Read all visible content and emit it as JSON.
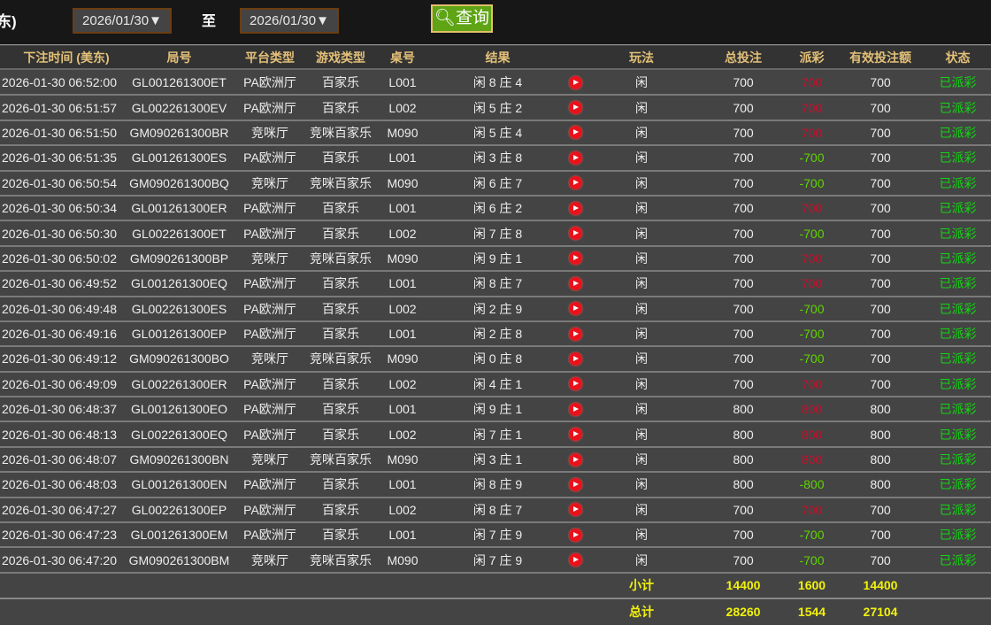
{
  "toolbar": {
    "cut_label": "东)",
    "start_date": "2026/01/30▼",
    "to_label": "至",
    "end_date": "2026/01/30▼",
    "query_label": "查询"
  },
  "headers": [
    "下注时间 (美东)",
    "局号",
    "平台类型",
    "游戏类型",
    "桌号",
    "结果",
    "",
    "玩法",
    "总投注",
    "派彩",
    "有效投注额",
    "状态"
  ],
  "colors": {
    "win": "#c4102c",
    "lose": "#5fd400",
    "status": "#14d414",
    "header": "#e3c078",
    "summary": "#f2f20a"
  },
  "rows": [
    [
      "2026-01-30 06:52:00",
      "GL001261300ET",
      "PA欧洲厅",
      "百家乐",
      "L001",
      "闲 8 庄 4",
      "闲",
      "700",
      "700",
      "700",
      "已派彩"
    ],
    [
      "2026-01-30 06:51:57",
      "GL002261300EV",
      "PA欧洲厅",
      "百家乐",
      "L002",
      "闲 5 庄 2",
      "闲",
      "700",
      "700",
      "700",
      "已派彩"
    ],
    [
      "2026-01-30 06:51:50",
      "GM090261300BR",
      "竞咪厅",
      "竞咪百家乐",
      "M090",
      "闲 5 庄 4",
      "闲",
      "700",
      "700",
      "700",
      "已派彩"
    ],
    [
      "2026-01-30 06:51:35",
      "GL001261300ES",
      "PA欧洲厅",
      "百家乐",
      "L001",
      "闲 3 庄 8",
      "闲",
      "700",
      "-700",
      "700",
      "已派彩"
    ],
    [
      "2026-01-30 06:50:54",
      "GM090261300BQ",
      "竞咪厅",
      "竞咪百家乐",
      "M090",
      "闲 6 庄 7",
      "闲",
      "700",
      "-700",
      "700",
      "已派彩"
    ],
    [
      "2026-01-30 06:50:34",
      "GL001261300ER",
      "PA欧洲厅",
      "百家乐",
      "L001",
      "闲 6 庄 2",
      "闲",
      "700",
      "700",
      "700",
      "已派彩"
    ],
    [
      "2026-01-30 06:50:30",
      "GL002261300ET",
      "PA欧洲厅",
      "百家乐",
      "L002",
      "闲 7 庄 8",
      "闲",
      "700",
      "-700",
      "700",
      "已派彩"
    ],
    [
      "2026-01-30 06:50:02",
      "GM090261300BP",
      "竞咪厅",
      "竞咪百家乐",
      "M090",
      "闲 9 庄 1",
      "闲",
      "700",
      "700",
      "700",
      "已派彩"
    ],
    [
      "2026-01-30 06:49:52",
      "GL001261300EQ",
      "PA欧洲厅",
      "百家乐",
      "L001",
      "闲 8 庄 7",
      "闲",
      "700",
      "700",
      "700",
      "已派彩"
    ],
    [
      "2026-01-30 06:49:48",
      "GL002261300ES",
      "PA欧洲厅",
      "百家乐",
      "L002",
      "闲 2 庄 9",
      "闲",
      "700",
      "-700",
      "700",
      "已派彩"
    ],
    [
      "2026-01-30 06:49:16",
      "GL001261300EP",
      "PA欧洲厅",
      "百家乐",
      "L001",
      "闲 2 庄 8",
      "闲",
      "700",
      "-700",
      "700",
      "已派彩"
    ],
    [
      "2026-01-30 06:49:12",
      "GM090261300BO",
      "竞咪厅",
      "竞咪百家乐",
      "M090",
      "闲 0 庄 8",
      "闲",
      "700",
      "-700",
      "700",
      "已派彩"
    ],
    [
      "2026-01-30 06:49:09",
      "GL002261300ER",
      "PA欧洲厅",
      "百家乐",
      "L002",
      "闲 4 庄 1",
      "闲",
      "700",
      "700",
      "700",
      "已派彩"
    ],
    [
      "2026-01-30 06:48:37",
      "GL001261300EO",
      "PA欧洲厅",
      "百家乐",
      "L001",
      "闲 9 庄 1",
      "闲",
      "800",
      "800",
      "800",
      "已派彩"
    ],
    [
      "2026-01-30 06:48:13",
      "GL002261300EQ",
      "PA欧洲厅",
      "百家乐",
      "L002",
      "闲 7 庄 1",
      "闲",
      "800",
      "800",
      "800",
      "已派彩"
    ],
    [
      "2026-01-30 06:48:07",
      "GM090261300BN",
      "竞咪厅",
      "竞咪百家乐",
      "M090",
      "闲 3 庄 1",
      "闲",
      "800",
      "800",
      "800",
      "已派彩"
    ],
    [
      "2026-01-30 06:48:03",
      "GL001261300EN",
      "PA欧洲厅",
      "百家乐",
      "L001",
      "闲 8 庄 9",
      "闲",
      "800",
      "-800",
      "800",
      "已派彩"
    ],
    [
      "2026-01-30 06:47:27",
      "GL002261300EP",
      "PA欧洲厅",
      "百家乐",
      "L002",
      "闲 8 庄 7",
      "闲",
      "700",
      "700",
      "700",
      "已派彩"
    ],
    [
      "2026-01-30 06:47:23",
      "GL001261300EM",
      "PA欧洲厅",
      "百家乐",
      "L001",
      "闲 7 庄 9",
      "闲",
      "700",
      "-700",
      "700",
      "已派彩"
    ],
    [
      "2026-01-30 06:47:20",
      "GM090261300BM",
      "竞咪厅",
      "竞咪百家乐",
      "M090",
      "闲 7 庄 9",
      "闲",
      "700",
      "-700",
      "700",
      "已派彩"
    ]
  ],
  "subtotal": {
    "label": "小计",
    "total_bet": "14400",
    "payout": "1600",
    "valid_bet": "14400"
  },
  "total": {
    "label": "总计",
    "total_bet": "28260",
    "payout": "1544",
    "valid_bet": "27104"
  }
}
